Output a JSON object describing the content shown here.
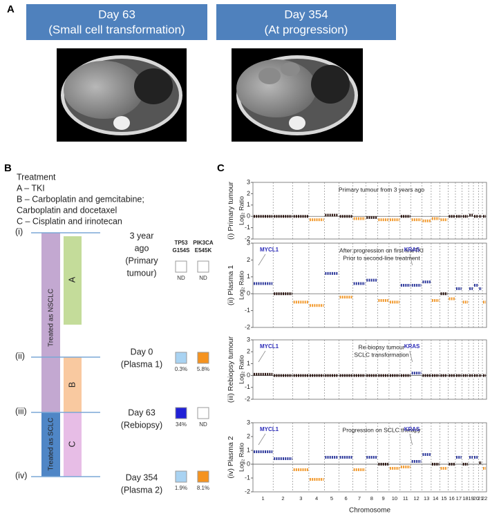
{
  "panel_a": {
    "label": "A",
    "images": [
      {
        "line1": "Day 63",
        "line2": "(Small cell transformation)"
      },
      {
        "line1": "Day 354",
        "line2": "(At progression)"
      }
    ]
  },
  "panel_b": {
    "label": "B",
    "treatment_heading": "Treatment",
    "treatment_lines": [
      "A – TKI",
      "B – Carboplatin and gemcitabine;",
      "      Carboplatin and docetaxel",
      "C – Cisplatin and irinotecan"
    ],
    "bar_labels": {
      "nsclc": "Treated as NSCLC",
      "sclc": "Treated as SCLC",
      "a": "A",
      "b": "B",
      "c": "C"
    },
    "mutation_headers": [
      {
        "line1": "TP53",
        "line2": "G154S"
      },
      {
        "line1": "PIK3CA",
        "line2": "E545K"
      }
    ],
    "stages": [
      {
        "roman": "(i)",
        "time_lines": [
          "3 year",
          "ago",
          "(Primary",
          "tumour)"
        ],
        "mutations": [
          {
            "label": "ND",
            "color": "#ffffff"
          },
          {
            "label": "ND",
            "color": "#ffffff"
          }
        ]
      },
      {
        "roman": "(ii)",
        "time_lines": [
          "Day 0",
          "(Plasma 1)"
        ],
        "mutations": [
          {
            "label": "0.3%",
            "color": "#a9d3f2"
          },
          {
            "label": "5.8%",
            "color": "#f5931f"
          }
        ]
      },
      {
        "roman": "(iii)",
        "time_lines": [
          "Day 63",
          "(Rebiopsy)"
        ],
        "mutations": [
          {
            "label": "34%",
            "color": "#2020d6"
          },
          {
            "label": "ND",
            "color": "#ffffff"
          }
        ]
      },
      {
        "roman": "(iv)",
        "time_lines": [
          "Day 354",
          "(Plasma 2)"
        ],
        "mutations": [
          {
            "label": "1.9%",
            "color": "#a9d3f2"
          },
          {
            "label": "8.1%",
            "color": "#f5931f"
          }
        ]
      }
    ]
  },
  "panel_c": {
    "label": "C",
    "x_axis_label": "Chromosome",
    "chromosomes": [
      "1",
      "2",
      "3",
      "4",
      "5",
      "6",
      "7",
      "8",
      "9",
      "10",
      "11",
      "12",
      "13",
      "14",
      "15",
      "16",
      "17",
      "18",
      "19",
      "20",
      "21",
      "22"
    ],
    "ylim": [
      -2,
      3
    ],
    "yticks": [
      -2,
      -1,
      0,
      1,
      2,
      3
    ],
    "y_label": "Log₂ Ratio",
    "colors": {
      "gain": "#2f3a9c",
      "loss": "#f29a2e",
      "neutral": "#2a1410"
    },
    "panels": [
      {
        "label": "(i) Primary tumour",
        "annotation": [
          "Primary tumour from 3 years ago"
        ],
        "genes": [],
        "values": [
          0,
          0,
          0,
          -0.3,
          0.1,
          0,
          -0.2,
          -0.1,
          -0.3,
          -0.3,
          0,
          -0.3,
          -0.4,
          -0.2,
          -0.3,
          0,
          0,
          0,
          0.1,
          0,
          0,
          0
        ]
      },
      {
        "label": "(ii) Plasma 1",
        "annotation": [
          "After progression on first-lineTKI",
          "Prior to second-line treatment"
        ],
        "genes": [
          "MYCL1",
          "KRAS"
        ],
        "values": [
          0.6,
          0,
          -0.5,
          -0.7,
          1.2,
          -0.2,
          0.6,
          0.8,
          -0.4,
          -0.5,
          0.5,
          0.5,
          0.7,
          -0.4,
          0,
          -0.3,
          0.3,
          -0.5,
          0.3,
          0.5,
          0.3,
          -0.5
        ]
      },
      {
        "label": "(iii) Rebiopsy tumour",
        "annotation": [
          "Re-biopsy tumour",
          "SCLC transformation"
        ],
        "genes": [
          "MYCL1",
          "KRAS"
        ],
        "values": [
          0.1,
          0,
          0,
          0,
          0,
          0,
          0,
          0,
          0,
          0,
          0,
          0.2,
          0,
          0,
          0,
          0,
          0,
          0,
          0,
          0,
          0,
          0
        ]
      },
      {
        "label": "(iv) Plasma 2",
        "annotation": [
          "Progression on SCLC therapy"
        ],
        "genes": [
          "MYCL1",
          "KRAS"
        ],
        "values": [
          0.9,
          0.4,
          -0.4,
          -1.1,
          0.5,
          0.5,
          -0.4,
          0.5,
          0,
          -0.3,
          -0.2,
          0.2,
          0.7,
          0,
          -0.3,
          0,
          0.5,
          0,
          0.5,
          0.5,
          0.1,
          -0.3
        ]
      }
    ]
  }
}
